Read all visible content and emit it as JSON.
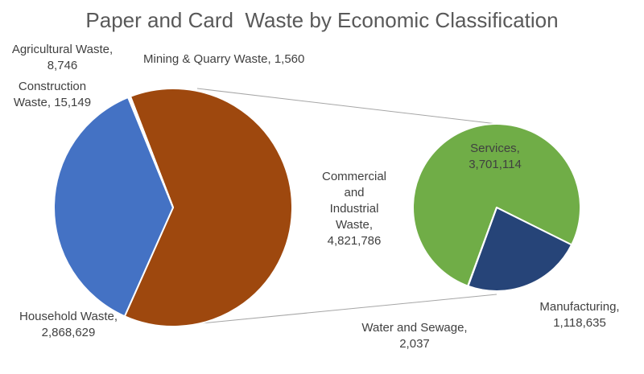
{
  "chart_data": {
    "type": "pie-of-pie",
    "title": "Paper and Card  Waste by Economic Classification",
    "primary": {
      "slices": [
        {
          "name": "Commercial and Industrial Waste",
          "label": "Commercial\nand\nIndustrial\nWaste,\n4,821,786",
          "value": 4821786,
          "color": "#9E480E"
        },
        {
          "name": "Household Waste",
          "label": "Household Waste,\n2,868,629",
          "value": 2868629,
          "color": "#4472C4"
        },
        {
          "name": "Construction Waste",
          "label": "Construction\nWaste, 15,149",
          "value": 15149,
          "color": "#4472C4"
        },
        {
          "name": "Agricultural Waste",
          "label": "Agricultural Waste,\n8,746",
          "value": 8746,
          "color": "#4472C4"
        },
        {
          "name": "Mining & Quarry Waste",
          "label": "Mining & Quarry Waste, 1,560",
          "value": 1560,
          "color": "#4472C4"
        }
      ]
    },
    "secondary": {
      "slices": [
        {
          "name": "Services",
          "label": "Services,\n3,701,114",
          "value": 3701114,
          "color": "#70AD47"
        },
        {
          "name": "Manufacturing",
          "label": "Manufacturing,\n1,118,635",
          "value": 1118635,
          "color": "#264478"
        },
        {
          "name": "Water and Sewage",
          "label": "Water and Sewage,\n2,037",
          "value": 2037,
          "color": "#70AD47"
        }
      ]
    }
  }
}
